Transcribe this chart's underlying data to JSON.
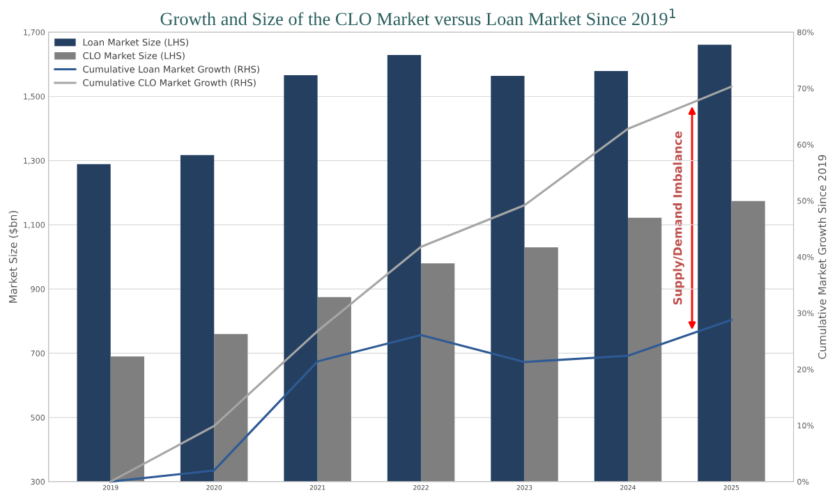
{
  "chart_data": {
    "type": "bar",
    "title": "Growth and Size of the CLO Market versus Loan Market Since 2019$^{1}$",
    "ylabel": "Market Size ($bn)",
    "y2label": "Cumulative Market Growth Since 2019",
    "categories": [
      "2019",
      "2020",
      "2021",
      "2022",
      "2023",
      "2024",
      "2025"
    ],
    "series": [
      {
        "name": "Loan Market Size (LHS)",
        "color": "#253f60",
        "values": [
          1289,
          1317,
          1566,
          1629,
          1564,
          1579,
          1661
        ]
      },
      {
        "name": "CLO Market Size (LHS)",
        "color": "#7f7f7f",
        "values": [
          690,
          760,
          875,
          980,
          1030,
          1122,
          1174
        ]
      },
      {
        "name": "Cumulative Loan Market Growth (RHS)",
        "type": "line",
        "axis": "y2",
        "color": "#2e5a94",
        "values": [
          0,
          2.0,
          21.4,
          26.1,
          21.3,
          22.4,
          28.8
        ]
      },
      {
        "name": "Cumulative CLO Market Growth (RHS)",
        "type": "line",
        "axis": "y2",
        "color": "#a6a6a6",
        "values": [
          0,
          9.9,
          26.8,
          41.8,
          49.2,
          62.8,
          70.3
        ]
      }
    ],
    "ylim": [
      300,
      1700
    ],
    "yticks": [
      {
        "value": 300,
        "label": "300"
      },
      {
        "value": 500,
        "label": "500"
      },
      {
        "value": 700,
        "label": "700"
      },
      {
        "value": 900,
        "label": "900"
      },
      {
        "value": 1100,
        "label": "1,100"
      },
      {
        "value": 1300,
        "label": "1,300"
      },
      {
        "value": 1500,
        "label": "1,500"
      },
      {
        "value": 1700,
        "label": "1,700"
      }
    ],
    "y2lim": [
      0,
      80
    ],
    "y2ticks": [
      {
        "value": 0,
        "label": "0%"
      },
      {
        "value": 10,
        "label": "10%"
      },
      {
        "value": 20,
        "label": "20%"
      },
      {
        "value": 30,
        "label": "30%"
      },
      {
        "value": 40,
        "label": "40%"
      },
      {
        "value": 50,
        "label": "50%"
      },
      {
        "value": 60,
        "label": "60%"
      },
      {
        "value": 70,
        "label": "70%"
      },
      {
        "value": 80,
        "label": "80%"
      }
    ],
    "annotations": [
      "Supply/Demand Imbalance"
    ],
    "grid": "y",
    "legend": "top left",
    "marker": "none",
    "line_style": "solid"
  }
}
